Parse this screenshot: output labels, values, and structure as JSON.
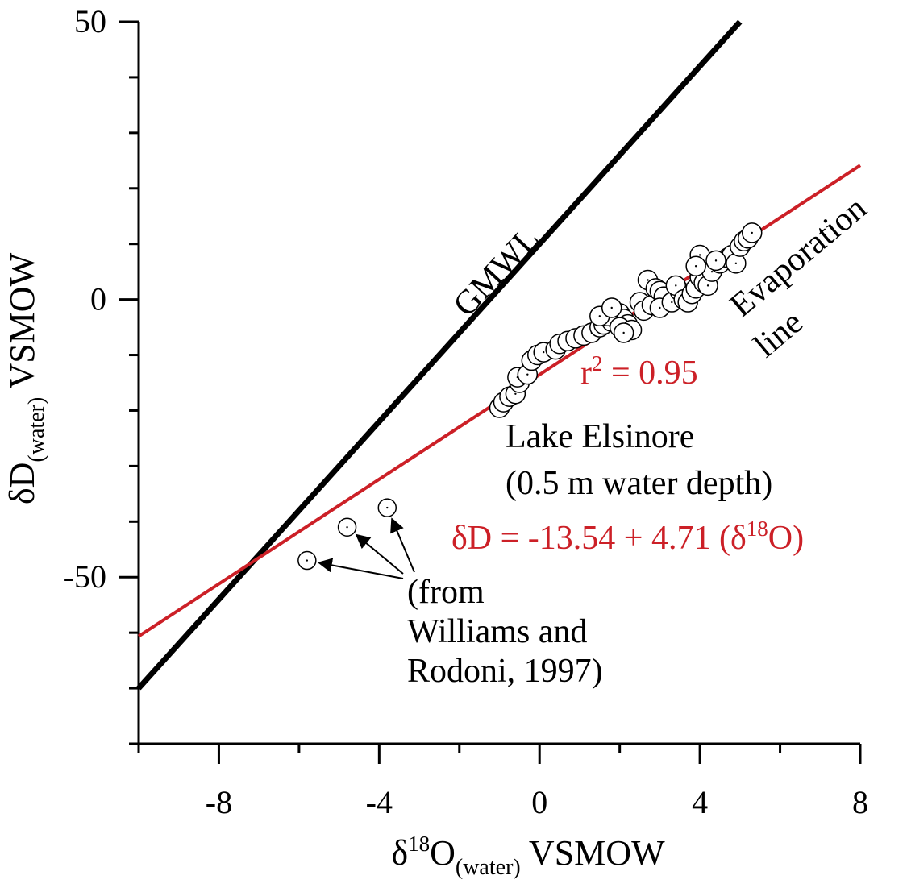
{
  "chart_data": {
    "type": "scatter",
    "xlim": [
      -10,
      8
    ],
    "ylim": [
      -80,
      50
    ],
    "x_ticks": [
      -8,
      -4,
      0,
      4,
      8
    ],
    "y_ticks": [
      50,
      0,
      -50
    ],
    "x_minor_step": 2,
    "y_minor_step": 10,
    "grid": false,
    "xlabel": {
      "main": "δ",
      "sup": "18",
      "after": "O",
      "sub": "(water)",
      "tail": " VSMOW"
    },
    "ylabel": {
      "main": "δD",
      "sub": "(water)",
      "tail": " VSMOW"
    },
    "lines": [
      {
        "name": "GMWL",
        "label": "GMWL",
        "color": "#000000",
        "x": [
          -10,
          5
        ],
        "y": [
          -70,
          50
        ]
      },
      {
        "name": "Evaporation line",
        "label_line1": "Evaporation",
        "label_line2": "line",
        "color": "#cc2027",
        "x": [
          -10,
          8
        ],
        "y": [
          -60.64,
          24.14
        ]
      }
    ],
    "regression": {
      "equation_prefix": "δD = -13.54 + 4.71 (δ",
      "equation_sup": "18",
      "equation_suffix": "O)",
      "r2_prefix": "r",
      "r2_sup": "2",
      "r2_suffix": " = 0.95"
    },
    "lake_label": {
      "line1": "Lake Elsinore",
      "line2": "(0.5 m water depth)"
    },
    "literature_label": {
      "line1": "(from",
      "line2": "Williams and",
      "line3": "Rodoni, 1997)"
    },
    "series": [
      {
        "name": "Lake Elsinore",
        "points": [
          [
            -1.0,
            -19.5
          ],
          [
            -0.9,
            -18.5
          ],
          [
            -0.75,
            -17.5
          ],
          [
            -0.6,
            -17.0
          ],
          [
            -0.5,
            -15.0
          ],
          [
            -0.55,
            -14.0
          ],
          [
            -0.3,
            -13.5
          ],
          [
            -0.2,
            -11.0
          ],
          [
            -0.05,
            -10.0
          ],
          [
            0.1,
            -9.5
          ],
          [
            0.4,
            -9.0
          ],
          [
            0.5,
            -8.0
          ],
          [
            0.7,
            -7.5
          ],
          [
            0.9,
            -7.0
          ],
          [
            1.1,
            -6.5
          ],
          [
            1.3,
            -6.0
          ],
          [
            1.5,
            -5.0
          ],
          [
            1.6,
            -4.5
          ],
          [
            1.8,
            -4.0
          ],
          [
            1.9,
            -3.5
          ],
          [
            2.0,
            -2.5
          ],
          [
            2.1,
            -3.5
          ],
          [
            2.2,
            -4.5
          ],
          [
            1.7,
            -3.0
          ],
          [
            1.5,
            -3.0
          ],
          [
            1.8,
            -1.5
          ],
          [
            2.0,
            -5.0
          ],
          [
            2.3,
            -5.5
          ],
          [
            2.1,
            -6.0
          ],
          [
            2.5,
            -0.5
          ],
          [
            2.6,
            -2.0
          ],
          [
            2.8,
            -1.0
          ],
          [
            2.7,
            3.5
          ],
          [
            2.9,
            2.0
          ],
          [
            3.0,
            1.5
          ],
          [
            3.1,
            0.5
          ],
          [
            3.0,
            -1.5
          ],
          [
            3.3,
            -0.5
          ],
          [
            3.5,
            1.5
          ],
          [
            3.4,
            2.5
          ],
          [
            3.6,
            0.0
          ],
          [
            3.7,
            -0.5
          ],
          [
            3.8,
            1.0
          ],
          [
            3.9,
            2.0
          ],
          [
            4.0,
            4.0
          ],
          [
            4.1,
            3.0
          ],
          [
            4.2,
            2.5
          ],
          [
            4.3,
            5.0
          ],
          [
            4.0,
            8.0
          ],
          [
            4.5,
            6.5
          ],
          [
            4.7,
            7.5
          ],
          [
            4.8,
            8.0
          ],
          [
            4.9,
            6.5
          ],
          [
            5.0,
            9.5
          ],
          [
            5.1,
            10.5
          ],
          [
            5.2,
            11.0
          ],
          [
            5.3,
            12.0
          ],
          [
            3.9,
            6.0
          ],
          [
            4.4,
            7.0
          ]
        ]
      },
      {
        "name": "Williams and Rodoni, 1997",
        "points": [
          [
            -5.8,
            -47.0
          ],
          [
            -4.8,
            -41.0
          ],
          [
            -3.8,
            -37.5
          ]
        ]
      }
    ]
  }
}
